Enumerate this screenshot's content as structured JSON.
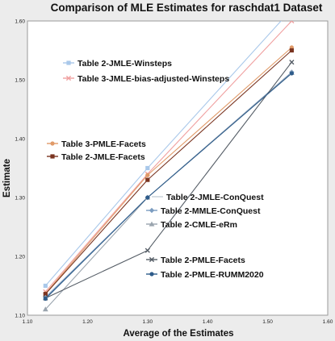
{
  "chart_data": {
    "type": "line",
    "title": "Comparison of MLE Estimates for raschdat1 Dataset",
    "xlabel": "Average of the Estimates",
    "ylabel": "Estimate",
    "xlim": [
      1.1,
      1.6
    ],
    "ylim": [
      1.1,
      1.6
    ],
    "x_ticks": [
      "1.10",
      "1.20",
      "1.30",
      "1.40",
      "1.50",
      "1.60"
    ],
    "y_ticks": [
      "1.10",
      "1.20",
      "1.30",
      "1.40",
      "1.50",
      "1.60"
    ],
    "grid": false,
    "x": [
      1.13,
      1.3,
      1.54
    ],
    "series": [
      {
        "name": "Table 2-JMLE-Winsteps",
        "values": [
          1.15,
          1.35,
          1.62
        ],
        "color": "#a9c8ea",
        "marker": "square"
      },
      {
        "name": "Table 3-JMLE-bias-adjusted-Winsteps",
        "values": [
          1.14,
          1.34,
          1.6
        ],
        "color": "#f0a0a0",
        "marker": "x"
      },
      {
        "name": "Table 3-PMLE-Facets",
        "values": [
          1.137,
          1.338,
          1.555
        ],
        "color": "#e09a68",
        "marker": "circle"
      },
      {
        "name": "Table 2-JMLE-Facets",
        "values": [
          1.136,
          1.33,
          1.55
        ],
        "color": "#7a3420",
        "marker": "square"
      },
      {
        "name": "Table 2-JMLE-ConQuest",
        "values": [
          1.131,
          1.3,
          1.512
        ],
        "color": "#c8cfd8",
        "marker": "none"
      },
      {
        "name": "Table 2-MMLE-ConQuest",
        "values": [
          1.13,
          1.3,
          1.513
        ],
        "color": "#7b9cc0",
        "marker": "diamond"
      },
      {
        "name": "Table 2-CMLE-eRm",
        "values": [
          1.11,
          1.3,
          1.512
        ],
        "color": "#9aa4ae",
        "marker": "triangle"
      },
      {
        "name": "Table 2-PMLE-Facets",
        "values": [
          1.129,
          1.21,
          1.53
        ],
        "color": "#555d66",
        "marker": "x"
      },
      {
        "name": "Table 2-PMLE-RUMM2020",
        "values": [
          1.128,
          1.3,
          1.511
        ],
        "color": "#2e5c8a",
        "marker": "circle"
      }
    ],
    "legend_placement": "inside-plot"
  }
}
